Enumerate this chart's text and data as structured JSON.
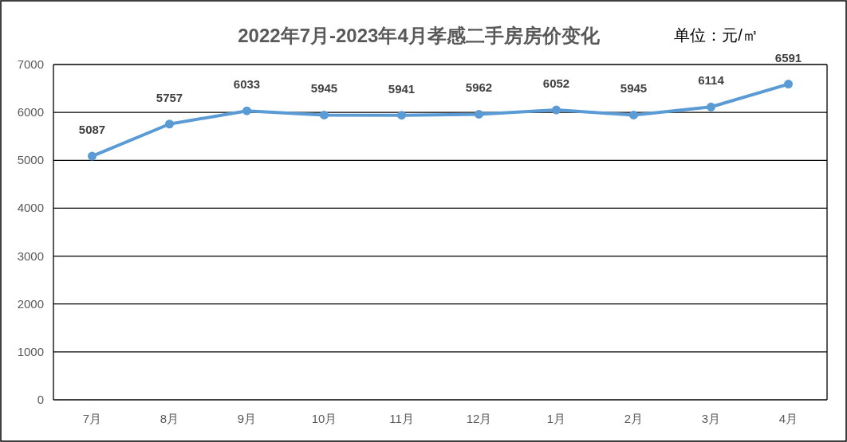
{
  "chart_data": {
    "type": "line",
    "title": "2022年7月-2023年4月孝感二手房房价变化",
    "subtitle": "单位：元/㎡",
    "categories": [
      "7月",
      "8月",
      "9月",
      "10月",
      "11月",
      "12月",
      "1月",
      "2月",
      "3月",
      "4月"
    ],
    "series": [
      {
        "color": "#5b9bd5",
        "values": [
          5087,
          5757,
          6033,
          5945,
          5941,
          5962,
          6052,
          5945,
          6114,
          6591
        ]
      }
    ],
    "ylim": [
      0,
      7000
    ],
    "yticks": [
      0,
      1000,
      2000,
      3000,
      4000,
      5000,
      6000,
      7000
    ],
    "grid": "y",
    "marker": "circle",
    "data_labels": true
  }
}
